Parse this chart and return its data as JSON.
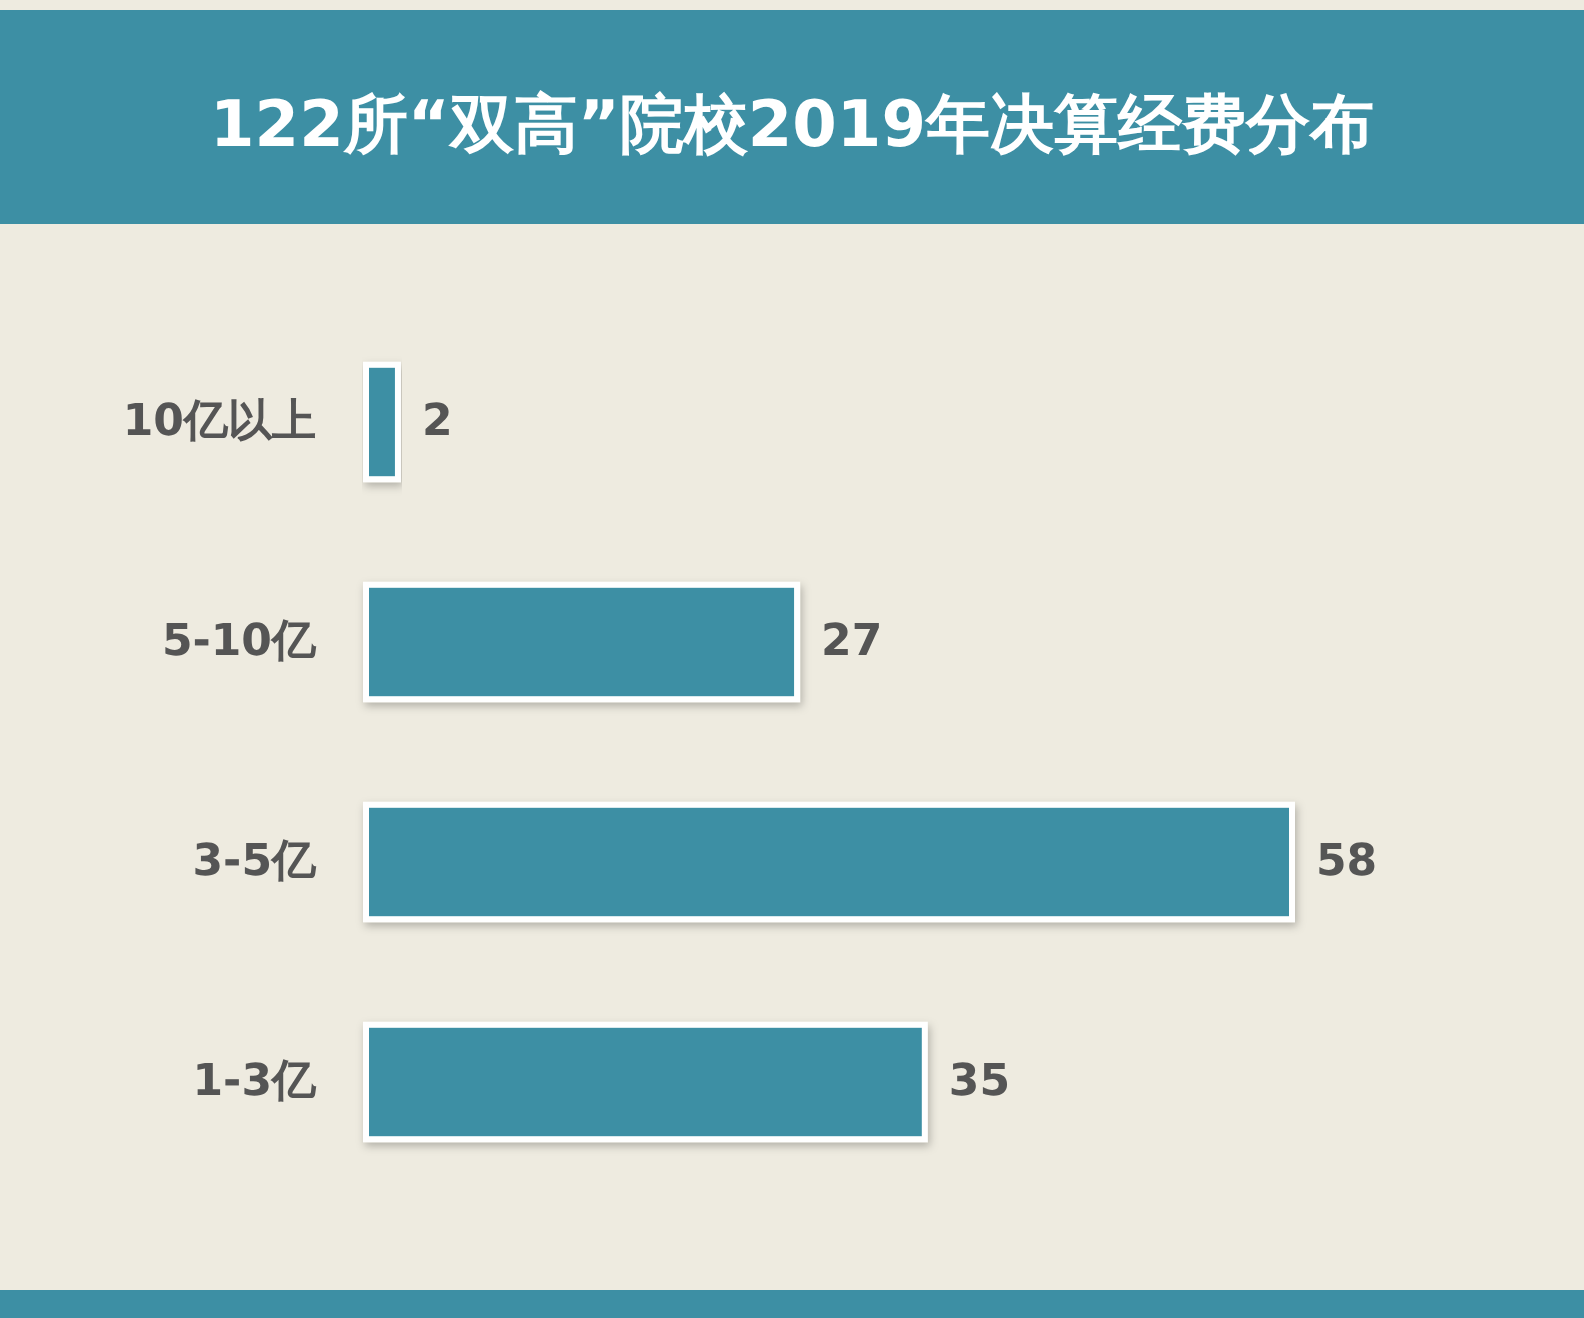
{
  "chart_data": {
    "type": "bar",
    "orientation": "horizontal",
    "title": "122所“双高”院校2019年决算经费分布",
    "categories": [
      "10亿以上",
      "5-10亿",
      "3-5亿",
      "1-3亿"
    ],
    "values": [
      2,
      27,
      58,
      35
    ],
    "color": "#3d8fa4",
    "data_labels": true,
    "tick_labels": "y"
  }
}
